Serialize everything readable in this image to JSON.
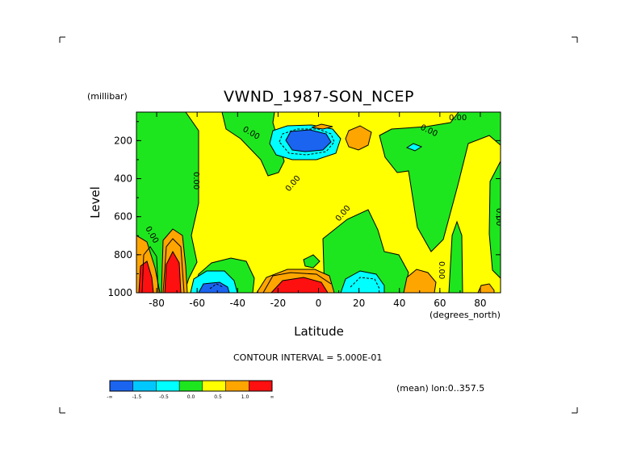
{
  "chart_data": {
    "type": "heatmap",
    "title": "VWND_1987-SON_NCEP",
    "xlabel": "Latitude",
    "x_unit": "(degrees_north)",
    "ylabel": "Level",
    "y_unit": "(millibar)",
    "xlim": [
      -90,
      90
    ],
    "ylim": [
      1000,
      50
    ],
    "y_inverted": true,
    "x_ticks": [
      "-80",
      "-60",
      "-40",
      "-20",
      "0",
      "20",
      "40",
      "60",
      "80"
    ],
    "y_ticks": [
      "200",
      "400",
      "600",
      "800",
      "1000"
    ],
    "contour_interval_text": "CONTOUR INTERVAL = 5.000E-01",
    "mean_text": "(mean) lon:0..357.5",
    "contour_labels": [
      "0.00",
      "0.00",
      "0.00",
      "0.00",
      "0.00",
      "0.00",
      "0.00",
      "0.00",
      "0.00"
    ],
    "colorbar": {
      "tick_labels": [
        "-∞",
        "-1.5",
        "-0.5",
        "0.0",
        "0.5",
        "1.0",
        "∞"
      ],
      "colors": [
        "#1a64f0",
        "#00c8ff",
        "#00ffff",
        "#1ee61e",
        "#ffff00",
        "#ffa500",
        "#ff1010"
      ]
    }
  }
}
